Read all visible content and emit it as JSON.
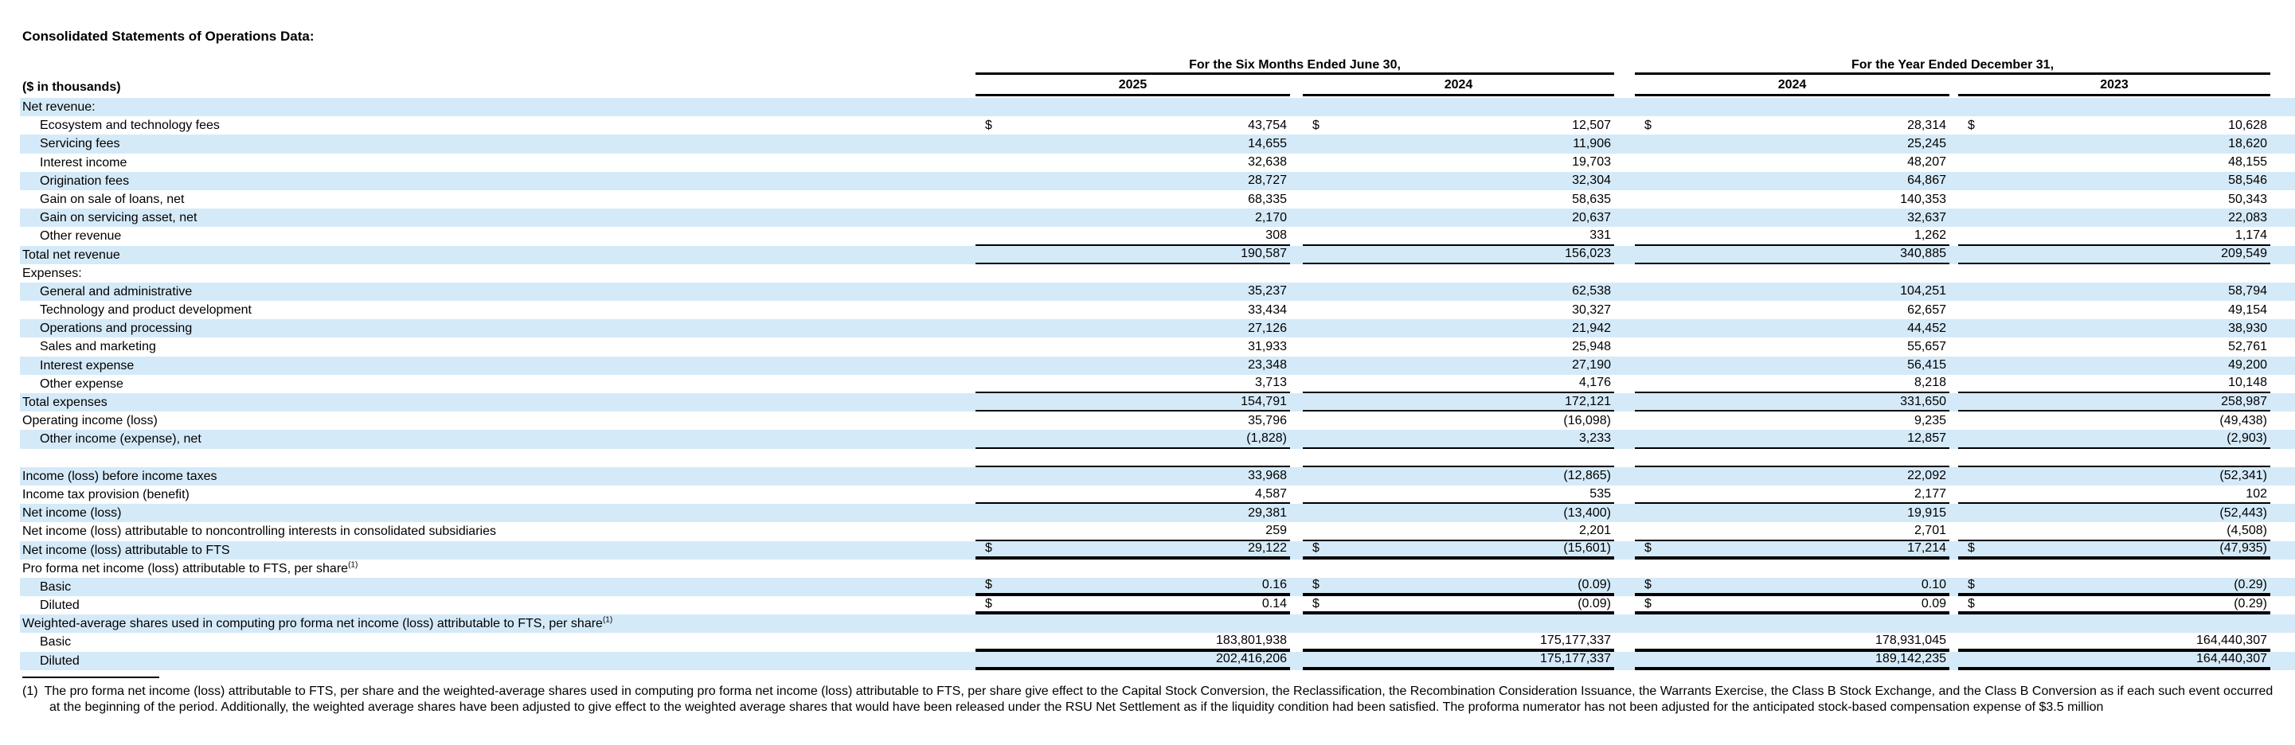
{
  "title": "Consolidated Statements of Operations Data:",
  "units_label": "($ in thousands)",
  "dollar_sign": "$",
  "colors": {
    "stripe": "#d5eaf8",
    "text": "#000000",
    "rule": "#000000",
    "background": "#ffffff"
  },
  "column_groups": [
    {
      "label": "For the Six Months Ended June 30,",
      "columns": [
        "2025",
        "2024"
      ]
    },
    {
      "label": "For the Year Ended December 31,",
      "columns": [
        "2024",
        "2023"
      ]
    }
  ],
  "rows": [
    {
      "label": "Net revenue:",
      "indent": 0,
      "dollar": false,
      "values": [
        "",
        "",
        "",
        ""
      ],
      "rule": "none"
    },
    {
      "label": "Ecosystem and technology fees",
      "indent": 1,
      "dollar": true,
      "values": [
        "43,754",
        "12,507",
        "28,314",
        "10,628"
      ],
      "rule": "none"
    },
    {
      "label": "Servicing fees",
      "indent": 1,
      "dollar": false,
      "values": [
        "14,655",
        "11,906",
        "25,245",
        "18,620"
      ],
      "rule": "none"
    },
    {
      "label": "Interest income",
      "indent": 1,
      "dollar": false,
      "values": [
        "32,638",
        "19,703",
        "48,207",
        "48,155"
      ],
      "rule": "none"
    },
    {
      "label": "Origination fees",
      "indent": 1,
      "dollar": false,
      "values": [
        "28,727",
        "32,304",
        "64,867",
        "58,546"
      ],
      "rule": "none"
    },
    {
      "label": "Gain on sale of loans, net",
      "indent": 1,
      "dollar": false,
      "values": [
        "68,335",
        "58,635",
        "140,353",
        "50,343"
      ],
      "rule": "none"
    },
    {
      "label": "Gain on servicing asset, net",
      "indent": 1,
      "dollar": false,
      "values": [
        "2,170",
        "20,637",
        "32,637",
        "22,083"
      ],
      "rule": "none"
    },
    {
      "label": "Other revenue",
      "indent": 1,
      "dollar": false,
      "values": [
        "308",
        "331",
        "1,262",
        "1,174"
      ],
      "rule": "thin"
    },
    {
      "label": "Total net revenue",
      "indent": 0,
      "dollar": false,
      "values": [
        "190,587",
        "156,023",
        "340,885",
        "209,549"
      ],
      "rule": "thin"
    },
    {
      "label": "Expenses:",
      "indent": 0,
      "dollar": false,
      "values": [
        "",
        "",
        "",
        ""
      ],
      "rule": "none"
    },
    {
      "label": "General and administrative",
      "indent": 1,
      "dollar": false,
      "values": [
        "35,237",
        "62,538",
        "104,251",
        "58,794"
      ],
      "rule": "none"
    },
    {
      "label": "Technology and product development",
      "indent": 1,
      "dollar": false,
      "values": [
        "33,434",
        "30,327",
        "62,657",
        "49,154"
      ],
      "rule": "none"
    },
    {
      "label": "Operations and processing",
      "indent": 1,
      "dollar": false,
      "values": [
        "27,126",
        "21,942",
        "44,452",
        "38,930"
      ],
      "rule": "none"
    },
    {
      "label": "Sales and marketing",
      "indent": 1,
      "dollar": false,
      "values": [
        "31,933",
        "25,948",
        "55,657",
        "52,761"
      ],
      "rule": "none"
    },
    {
      "label": "Interest expense",
      "indent": 1,
      "dollar": false,
      "values": [
        "23,348",
        "27,190",
        "56,415",
        "49,200"
      ],
      "rule": "none"
    },
    {
      "label": "Other expense",
      "indent": 1,
      "dollar": false,
      "values": [
        "3,713",
        "4,176",
        "8,218",
        "10,148"
      ],
      "rule": "thin"
    },
    {
      "label": "Total expenses",
      "indent": 0,
      "dollar": false,
      "values": [
        "154,791",
        "172,121",
        "331,650",
        "258,987"
      ],
      "rule": "thin"
    },
    {
      "label": "Operating income (loss)",
      "indent": 0,
      "dollar": false,
      "values": [
        "35,796",
        "(16,098)",
        "9,235",
        "(49,438)"
      ],
      "rule": "none"
    },
    {
      "label": "Other income (expense), net",
      "indent": 1,
      "dollar": false,
      "values": [
        "(1,828)",
        "3,233",
        "12,857",
        "(2,903)"
      ],
      "rule": "thin"
    },
    {
      "label": "",
      "indent": 0,
      "dollar": false,
      "values": [
        "",
        "",
        "",
        ""
      ],
      "rule": "thin"
    },
    {
      "label": "Income (loss) before income taxes",
      "indent": 0,
      "dollar": false,
      "values": [
        "33,968",
        "(12,865)",
        "22,092",
        "(52,341)"
      ],
      "rule": "none"
    },
    {
      "label": "Income tax provision (benefit)",
      "indent": 0,
      "dollar": false,
      "values": [
        "4,587",
        "535",
        "2,177",
        "102"
      ],
      "rule": "thin"
    },
    {
      "label": "Net income (loss)",
      "indent": 0,
      "dollar": false,
      "values": [
        "29,381",
        "(13,400)",
        "19,915",
        "(52,443)"
      ],
      "rule": "none"
    },
    {
      "label": "Net income (loss) attributable to noncontrolling interests in consolidated subsidiaries",
      "indent": 0,
      "dollar": false,
      "values": [
        "259",
        "2,201",
        "2,701",
        "(4,508)"
      ],
      "rule": "thin"
    },
    {
      "label": "Net income (loss) attributable to FTS",
      "indent": 0,
      "dollar": true,
      "values": [
        "29,122",
        "(15,601)",
        "17,214",
        "(47,935)"
      ],
      "rule": "thick"
    },
    {
      "label": "Pro forma net income (loss) attributable to FTS, per share",
      "sup": "(1)",
      "indent": 0,
      "dollar": false,
      "values": [
        "",
        "",
        "",
        ""
      ],
      "rule": "none"
    },
    {
      "label": "Basic",
      "indent": 1,
      "dollar": true,
      "values": [
        "0.16",
        "(0.09)",
        "0.10",
        "(0.29)"
      ],
      "rule": "thick"
    },
    {
      "label": "Diluted",
      "indent": 1,
      "dollar": true,
      "values": [
        "0.14",
        "(0.09)",
        "0.09",
        "(0.29)"
      ],
      "rule": "thick"
    },
    {
      "label": "Weighted-average shares used in computing pro forma net income (loss) attributable to FTS, per share",
      "sup": "(1)",
      "indent": 0,
      "dollar": false,
      "values": [
        "",
        "",
        "",
        ""
      ],
      "rule": "none"
    },
    {
      "label": "Basic",
      "indent": 1,
      "dollar": false,
      "values": [
        "183,801,938",
        "175,177,337",
        "178,931,045",
        "164,440,307"
      ],
      "rule": "thick"
    },
    {
      "label": "Diluted",
      "indent": 1,
      "dollar": false,
      "values": [
        "202,416,206",
        "175,177,337",
        "189,142,235",
        "164,440,307"
      ],
      "rule": "thick"
    }
  ],
  "footnote": {
    "marker": "(1)",
    "text": "The pro forma net income (loss) attributable to FTS, per share and the weighted-average shares used in computing pro forma net income (loss) attributable to FTS, per share give effect to the Capital Stock Conversion, the Reclassification, the Recombination Consideration Issuance, the Warrants Exercise, the Class B Stock Exchange, and the Class B Conversion as if each such event occurred at the beginning of the period. Additionally, the weighted average shares have been adjusted to give effect to the weighted average shares that would have been released under the RSU Net Settlement as if the liquidity condition had been satisfied. The proforma numerator has not been adjusted for the anticipated stock-based compensation expense of $3.5 million"
  }
}
